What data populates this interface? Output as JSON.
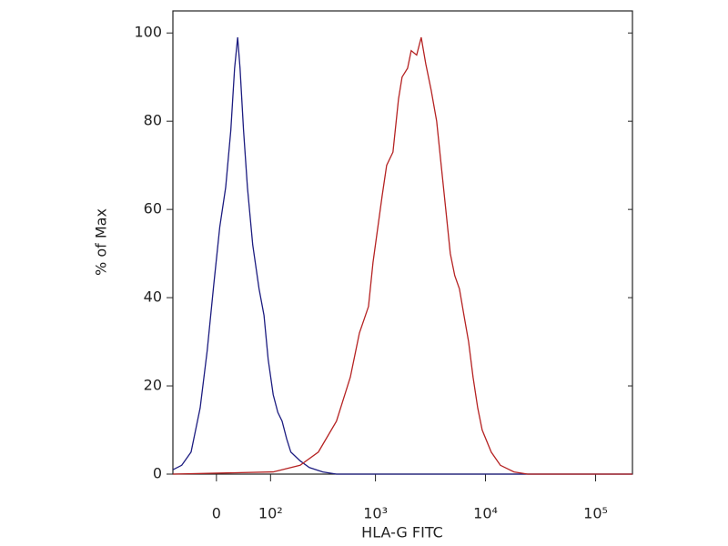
{
  "chart_data": {
    "type": "line",
    "x_label": "HLA-G  FITC",
    "y_label": "% of Max",
    "xscale": "biexponential",
    "xlim": [
      -75,
      216000
    ],
    "ylim": [
      0,
      105
    ],
    "xticks": [
      0,
      {
        "value": 100,
        "label": "10²"
      },
      {
        "value": 1000,
        "label": "10³"
      },
      {
        "value": 10000,
        "label": "10⁴"
      },
      {
        "value": 100000,
        "label": "10⁵"
      }
    ],
    "yticks": [
      0,
      20,
      40,
      60,
      80,
      100
    ],
    "series": [
      {
        "color": "#1c1c80",
        "x": [
          -75,
          -57,
          -40,
          -25,
          -14,
          -4,
          5,
          14,
          22,
          28,
          33,
          37,
          43,
          50,
          60,
          73,
          84,
          94,
          107,
          120,
          133,
          148,
          163,
          201,
          246,
          329,
          440,
          100000,
          216000
        ],
        "values": [
          1,
          2,
          5,
          15,
          28,
          43,
          56,
          65,
          78,
          92,
          99,
          92,
          78,
          65,
          52,
          42,
          36,
          26,
          18,
          14,
          12,
          8,
          5,
          3,
          1.5,
          0.5,
          0,
          0,
          0
        ]
      },
      {
        "color": "#b52222",
        "x": [
          -75,
          107,
          201,
          299,
          440,
          590,
          714,
          786,
          864,
          950,
          1149,
          1264,
          1443,
          1620,
          1746,
          1959,
          2113,
          2369,
          2606,
          2866,
          3211,
          3600,
          4035,
          4356,
          4788,
          5256,
          5796,
          6372,
          7020,
          7704,
          8496,
          9324,
          11268,
          13644,
          18144,
          24120,
          216000
        ],
        "values": [
          0,
          0.5,
          2,
          5,
          12,
          22,
          32,
          35,
          38,
          48,
          63,
          70,
          73,
          85,
          90,
          92,
          96,
          95,
          99,
          93,
          87,
          80,
          68,
          60,
          50,
          45,
          42,
          36,
          30,
          22,
          15,
          10,
          5,
          2,
          0.5,
          0,
          0
        ]
      }
    ]
  }
}
